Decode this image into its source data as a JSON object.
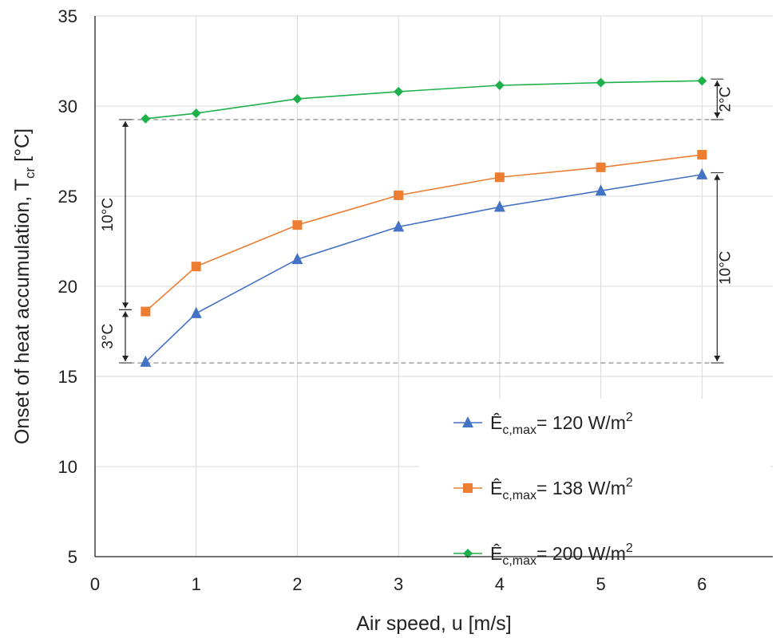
{
  "chart_data": {
    "type": "line",
    "xlabel": "Air speed, u [m/s]",
    "ylabel": {
      "main": "Onset of heat accumulation, T",
      "sub": "cr",
      "unit": " [°C]"
    },
    "xlim": [
      0,
      6.7
    ],
    "ylim": [
      5,
      35
    ],
    "xticks": [
      0,
      1,
      2,
      3,
      4,
      5,
      6
    ],
    "yticks": [
      5,
      10,
      15,
      20,
      25,
      30,
      35
    ],
    "grid": true,
    "legend_position": "lower-right",
    "series": [
      {
        "name": {
          "symbol": "Ê",
          "sub": "c,max",
          "value": "= 120 W/m",
          "sup": "2"
        },
        "color": "#4472C4",
        "marker": "triangle",
        "x": [
          0.5,
          1,
          2,
          3,
          4,
          5,
          6
        ],
        "y": [
          15.8,
          18.5,
          21.5,
          23.3,
          24.4,
          25.3,
          26.2
        ]
      },
      {
        "name": {
          "symbol": "Ê",
          "sub": "c,max",
          "value": "= 138 W/m",
          "sup": "2"
        },
        "color": "#ED7D31",
        "marker": "square",
        "x": [
          0.5,
          1,
          2,
          3,
          4,
          5,
          6
        ],
        "y": [
          18.6,
          21.1,
          23.4,
          25.05,
          26.05,
          26.6,
          27.3
        ]
      },
      {
        "name": {
          "symbol": "Ê",
          "sub": "c,max",
          "value": "= 200 W/m",
          "sup": "2"
        },
        "color": "#1DB04B",
        "marker": "diamond",
        "x": [
          0.5,
          1,
          2,
          3,
          4,
          5,
          6
        ],
        "y": [
          29.3,
          29.6,
          30.4,
          30.8,
          31.15,
          31.3,
          31.4
        ]
      }
    ],
    "reference_lines": [
      {
        "y": 29.25,
        "x_from": 0.5,
        "x_to": 6.2
      },
      {
        "y": 15.75,
        "x_from": 0.5,
        "x_to": 6.2
      }
    ],
    "annotations": [
      {
        "label": "10°C",
        "x": 0.3,
        "y_from": 18.7,
        "y_to": 29.25,
        "label_side": "left"
      },
      {
        "label": "3°C",
        "x": 0.3,
        "y_from": 15.75,
        "y_to": 18.7,
        "label_side": "left"
      },
      {
        "label": "2°C",
        "x": 6.15,
        "y_from": 29.25,
        "y_to": 31.5,
        "label_side": "right"
      },
      {
        "label": "10°C",
        "x": 6.15,
        "y_from": 15.75,
        "y_to": 26.3,
        "label_side": "right"
      }
    ]
  }
}
